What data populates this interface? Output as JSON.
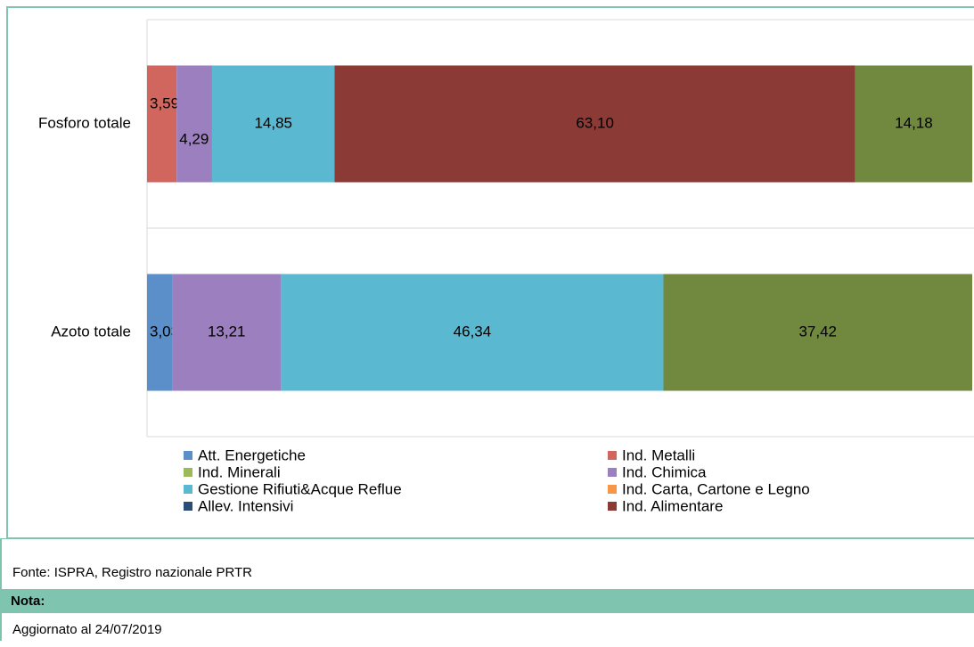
{
  "chart_data": {
    "type": "stacked_barh",
    "categories": [
      "Fosforo totale",
      "Azoto totale"
    ],
    "xlim": [
      0,
      100
    ],
    "series": [
      {
        "name": "Att. Energetiche",
        "color": "#5b8fc9",
        "values": [
          null,
          3.03
        ],
        "value_labels": [
          null,
          "3,03"
        ]
      },
      {
        "name": "Ind. Metalli",
        "color": "#d1665e",
        "values": [
          3.59,
          null
        ],
        "value_labels": [
          "3,59",
          null
        ]
      },
      {
        "name": "Ind. Minerali",
        "color": "#9bbb59",
        "values": [
          null,
          null
        ]
      },
      {
        "name": "Ind. Chimica",
        "color": "#9c7fbf",
        "values": [
          4.29,
          13.21
        ],
        "value_labels": [
          "4,29",
          "13,21"
        ]
      },
      {
        "name": "Gestione Rifiuti&Acque Reflue",
        "color": "#5ab8d0",
        "values": [
          14.85,
          46.34
        ],
        "value_labels": [
          "14,85",
          "46,34"
        ]
      },
      {
        "name": "Ind. Carta, Cartone e Legno",
        "color": "#f79646",
        "values": [
          null,
          null
        ]
      },
      {
        "name": "Allev. Intensivi",
        "color": "#2c4d75",
        "values": [
          null,
          null
        ]
      },
      {
        "name": "Ind. Alimentare",
        "color": "#8b3a36",
        "values": [
          63.1,
          null
        ],
        "value_labels": [
          "63,10",
          null
        ]
      },
      {
        "color": "#71893f",
        "values": [
          14.18,
          37.42
        ],
        "value_labels": [
          "14,18",
          "37,42"
        ]
      }
    ]
  },
  "source": "Fonte: ISPRA, Registro nazionale PRTR",
  "note_label": "Nota:",
  "note_text": "Aggiornato al 24/07/2019"
}
